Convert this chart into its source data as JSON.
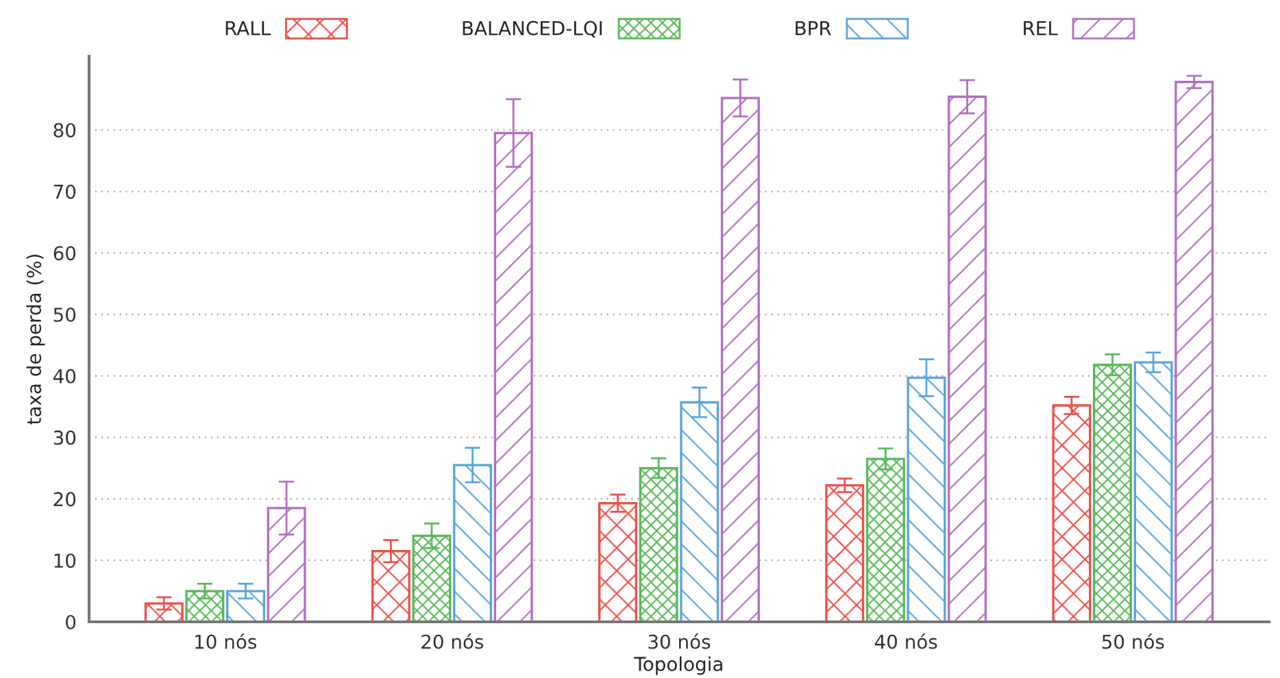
{
  "chart_data": {
    "type": "bar",
    "xlabel": "Topologia",
    "ylabel": "taxa de perda (%)",
    "categories": [
      "10 nós",
      "20 nós",
      "30 nós",
      "40 nós",
      "50 nós"
    ],
    "series": [
      {
        "name": "RALL",
        "color": "#f0504a",
        "values": [
          3.0,
          11.5,
          19.3,
          22.2,
          35.2
        ],
        "errors": [
          1.0,
          1.8,
          1.4,
          1.1,
          1.4
        ]
      },
      {
        "name": "BALANCED-LQI",
        "color": "#5cb85c",
        "values": [
          5.0,
          14.0,
          25.0,
          26.5,
          41.8
        ],
        "errors": [
          1.2,
          2.0,
          1.6,
          1.7,
          1.7
        ]
      },
      {
        "name": "BPR",
        "color": "#5aa5dc",
        "values": [
          5.0,
          25.5,
          35.7,
          39.7,
          42.2
        ],
        "errors": [
          1.2,
          2.8,
          2.4,
          3.0,
          1.6
        ]
      },
      {
        "name": "REL",
        "color": "#b070c0",
        "values": [
          18.5,
          79.5,
          85.2,
          85.4,
          87.8
        ],
        "errors": [
          4.3,
          5.5,
          3.0,
          2.7,
          1.0
        ]
      }
    ],
    "ylim": [
      0,
      92
    ],
    "yticks": [
      0,
      10,
      20,
      30,
      40,
      50,
      60,
      70,
      80
    ],
    "grid": "y",
    "legend": "top"
  }
}
